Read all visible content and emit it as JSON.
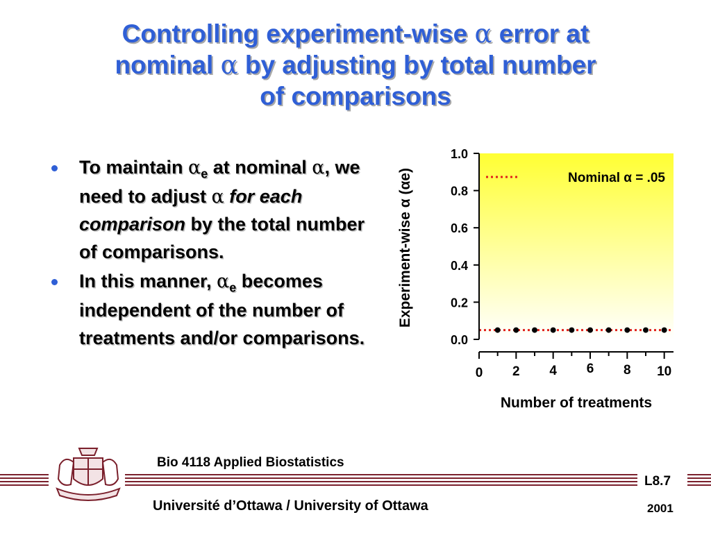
{
  "slide": {
    "title": "Controlling experiment-wise α error at nominal α by adjusting by total number of comparisons",
    "bullets": [
      "To maintain αe at nominal α, we need to adjust α for each comparison by the total number of comparisons.",
      "In this manner, αe becomes independent of the number of treatments and/or comparisons."
    ]
  },
  "footer": {
    "course": "Bio 4118 Applied Biostatistics",
    "university": "Université d’Ottawa / University of Ottawa",
    "slide_number": "L8.7",
    "year": "2001"
  },
  "colors": {
    "title": "#2f5fd6",
    "bullet": "#2f5fd6",
    "plot_bg_top": "#ffff33",
    "plot_bg_bottom": "#ffffff",
    "nominal_line": "#e0201a",
    "maroon": "#7a1f2b"
  },
  "chart_data": {
    "type": "scatter",
    "x": [
      1,
      2,
      3,
      4,
      5,
      6,
      7,
      8,
      9,
      10
    ],
    "y": [
      0.05,
      0.05,
      0.05,
      0.05,
      0.05,
      0.05,
      0.05,
      0.05,
      0.05,
      0.05
    ],
    "xlim": [
      0,
      10.5
    ],
    "ylim": [
      0,
      1
    ],
    "xticks": [
      0,
      2,
      4,
      6,
      8,
      10
    ],
    "yticks": [
      0.0,
      0.2,
      0.4,
      0.6,
      0.8,
      1.0
    ],
    "ytick_labels": [
      "0.0",
      "0.2",
      "0.4",
      "0.6",
      "0.8",
      "1.0"
    ],
    "xlabel": "Number of treatments",
    "ylabel": "Experiment-wise α (αe)",
    "reference_line": {
      "y": 0.05,
      "label": "Nominal α = .05",
      "style": "dotted"
    },
    "legend_position": "top-right",
    "grid": false
  }
}
